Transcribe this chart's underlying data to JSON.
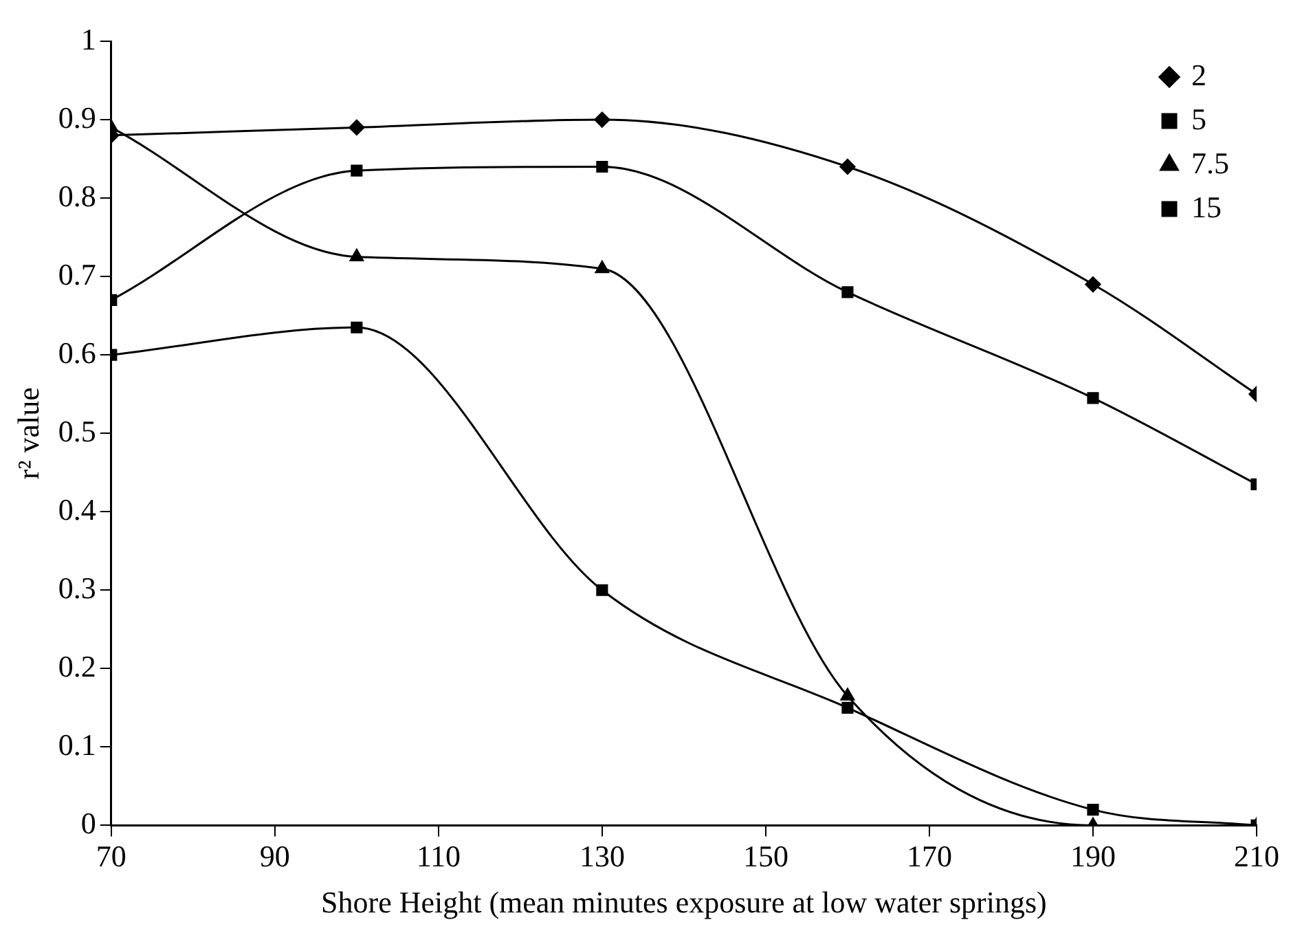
{
  "chart_data": {
    "type": "line",
    "xlabel": "Shore Height (mean minutes exposure at low water springs)",
    "ylabel": "r² value",
    "x": [
      70,
      100,
      130,
      160,
      190,
      210
    ],
    "series": [
      {
        "name": "2",
        "color": "#000000",
        "marker": "diamond",
        "values": [
          0.88,
          0.89,
          0.9,
          0.84,
          0.69,
          0.55
        ]
      },
      {
        "name": "5",
        "color": "#000000",
        "marker": "square",
        "values": [
          0.67,
          0.835,
          0.84,
          0.68,
          0.545,
          0.435
        ]
      },
      {
        "name": "7.5",
        "color": "#000000",
        "marker": "triangle",
        "values": [
          0.89,
          0.725,
          0.71,
          0.165,
          0.0,
          0.0
        ]
      },
      {
        "name": "15",
        "color": "#000000",
        "marker": "square",
        "values": [
          0.6,
          0.635,
          0.3,
          0.15,
          0.02,
          0.0
        ]
      }
    ],
    "xlim": [
      70,
      210
    ],
    "xticks": [
      70,
      90,
      110,
      130,
      150,
      170,
      190,
      210
    ],
    "ylim": [
      0,
      1
    ],
    "yticks": [
      0,
      0.1,
      0.2,
      0.3,
      0.4,
      0.5,
      0.6,
      0.7,
      0.8,
      0.9,
      1
    ],
    "grid": false,
    "legend": "top right",
    "line_style": "solid"
  }
}
